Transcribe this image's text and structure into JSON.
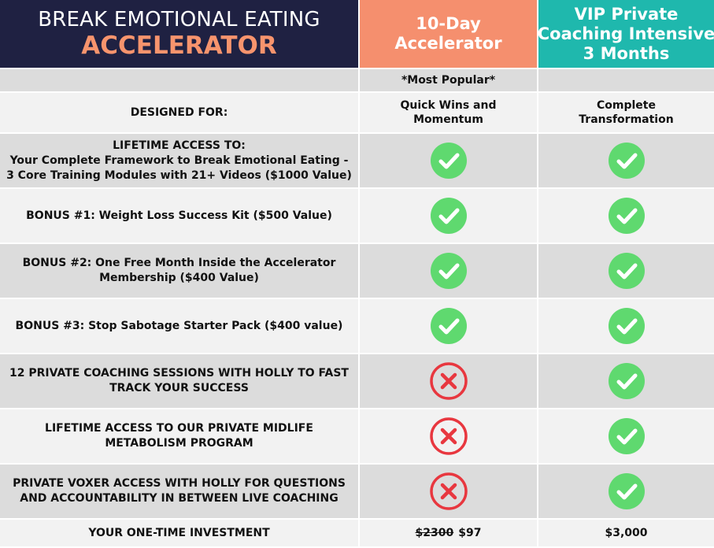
{
  "header": {
    "title_line1": "BREAK EMOTIONAL EATING",
    "title_line2": "ACCELERATOR",
    "col1": [
      "10-Day",
      "Accelerator"
    ],
    "col2": [
      "VIP Private",
      "Coaching Intensive",
      "3 Months"
    ]
  },
  "popular_badge": "*Most Popular*",
  "designed_for": {
    "label": "DESIGNED FOR:",
    "col1": [
      "Quick Wins and",
      "Momentum"
    ],
    "col2": [
      "Complete",
      "Transformation"
    ]
  },
  "rows": [
    {
      "label": [
        "LIFETIME ACCESS TO:",
        "Your Complete Framework to Break Emotional Eating -",
        "3 Core Training Modules with 21+ Videos ($1000 Value)"
      ],
      "col1": "check-icon",
      "col2": "check-icon"
    },
    {
      "label": [
        "BONUS #1: Weight Loss Success Kit ($500 Value)"
      ],
      "col1": "check-icon",
      "col2": "check-icon"
    },
    {
      "label": [
        "BONUS #2: One Free Month Inside the Accelerator",
        "Membership ($400 Value)"
      ],
      "col1": "check-icon",
      "col2": "check-icon"
    },
    {
      "label": [
        "BONUS #3: Stop Sabotage Starter Pack ($400 value)"
      ],
      "col1": "check-icon",
      "col2": "check-icon"
    },
    {
      "label": [
        "12 PRIVATE COACHING SESSIONS WITH HOLLY TO FAST",
        "TRACK YOUR SUCCESS"
      ],
      "col1": "x-icon",
      "col2": "check-icon"
    },
    {
      "label": [
        "LIFETIME ACCESS TO OUR PRIVATE MIDLIFE",
        "METABOLISM PROGRAM"
      ],
      "col1": "x-icon",
      "col2": "check-icon"
    },
    {
      "label": [
        "PRIVATE VOXER ACCESS WITH HOLLY FOR QUESTIONS",
        "AND ACCOUNTABILITY IN BETWEEN LIVE COACHING"
      ],
      "col1": "x-icon",
      "col2": "check-icon"
    }
  ],
  "investment": {
    "label": "YOUR ONE-TIME INVESTMENT",
    "col1_old": "$2300",
    "col1_new": "$97",
    "col2": "$3,000"
  },
  "colors": {
    "navy": "#1f2142",
    "coral": "#f58f6e",
    "teal": "#1fb8ad",
    "check_green": "#5fd96f",
    "x_red": "#e8373f"
  }
}
